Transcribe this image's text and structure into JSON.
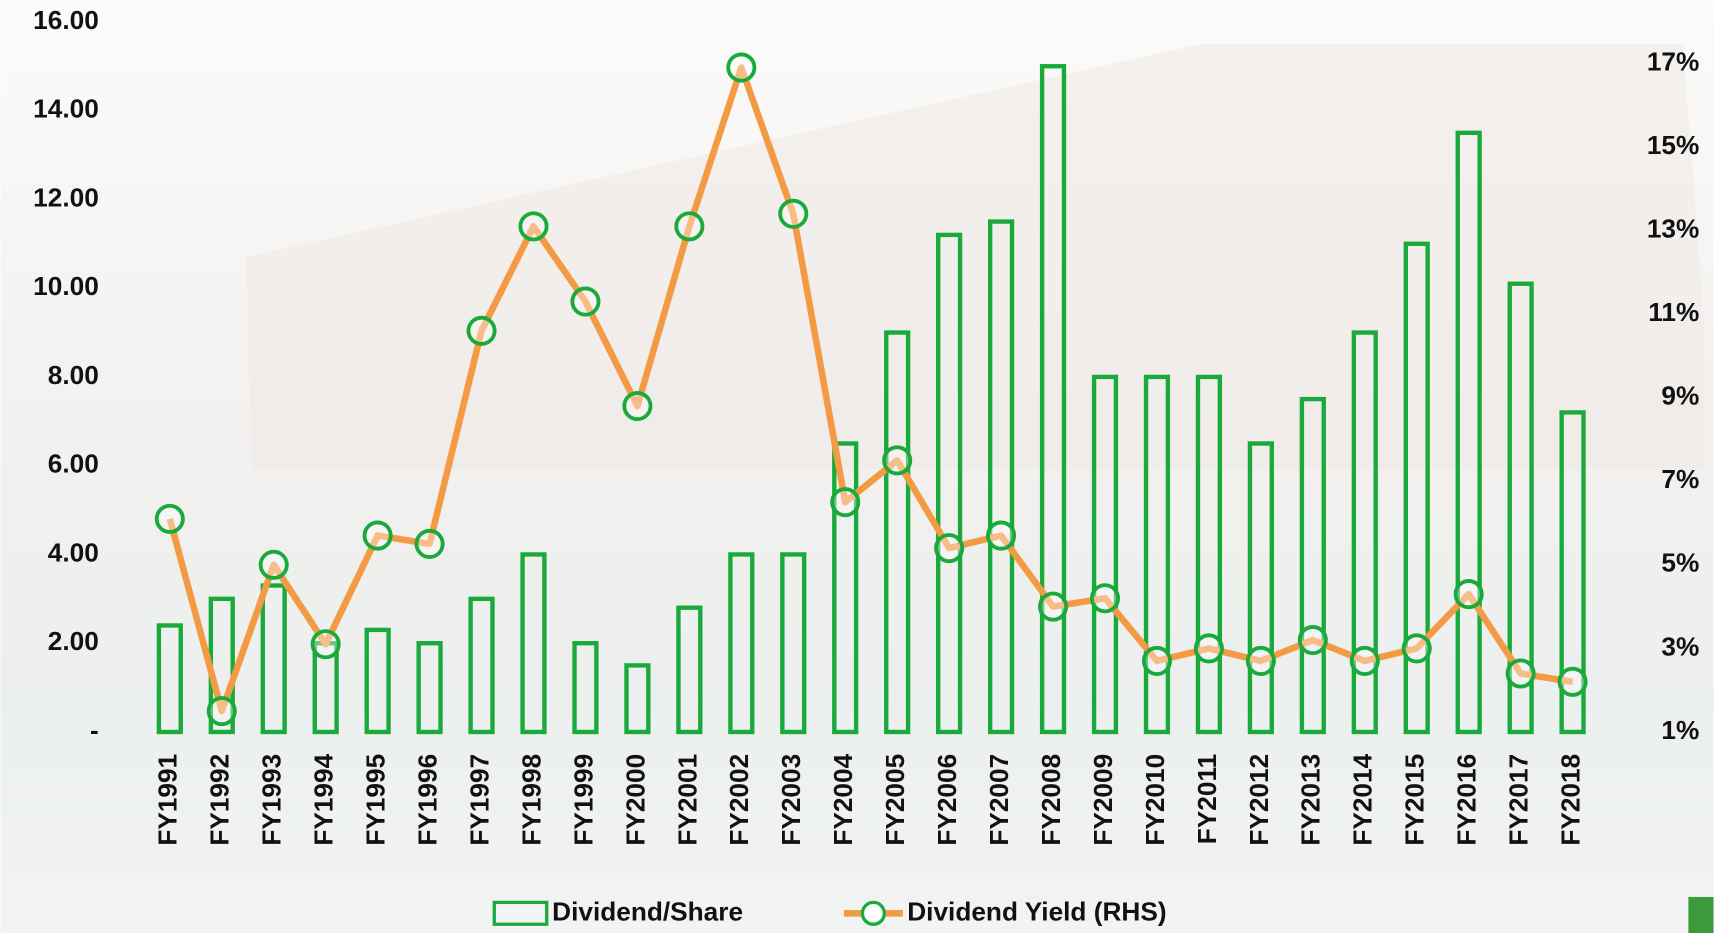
{
  "chart_data": {
    "type": "bar-line",
    "categories": [
      "FY1991",
      "FY1992",
      "FY1993",
      "FY1994",
      "FY1995",
      "FY1996",
      "FY1997",
      "FY1998",
      "FY1999",
      "FY2000",
      "FY2001",
      "FY2002",
      "FY2003",
      "FY2004",
      "FY2005",
      "FY2006",
      "FY2007",
      "FY2008",
      "FY2009",
      "FY2010",
      "FY2011",
      "FY2012",
      "FY2013",
      "FY2014",
      "FY2015",
      "FY2016",
      "FY2017",
      "FY2018"
    ],
    "series": [
      {
        "name": "Dividend/Share",
        "type": "bar",
        "color": "#1aaa3c",
        "values": [
          2.4,
          3.0,
          3.3,
          2.0,
          2.3,
          2.0,
          3.0,
          4.0,
          2.0,
          1.5,
          2.8,
          4.0,
          4.0,
          6.5,
          9.0,
          11.2,
          11.5,
          15.0,
          8.0,
          8.0,
          8.0,
          6.5,
          7.5,
          9.0,
          11.0,
          13.5,
          10.1,
          7.2
        ]
      },
      {
        "name": "Dividend Yield (RHS)",
        "type": "line",
        "axis": "y2",
        "color": "#f39a45",
        "marker_color": "#1aaa3c",
        "values": [
          6.1,
          1.5,
          5.0,
          3.1,
          5.7,
          5.5,
          10.6,
          13.1,
          11.3,
          8.8,
          13.1,
          16.9,
          13.4,
          6.5,
          7.5,
          5.4,
          5.7,
          4.0,
          4.2,
          2.7,
          3.0,
          2.7,
          3.2,
          2.7,
          3.0,
          4.3,
          2.4,
          2.2
        ]
      }
    ],
    "ylim": [
      0,
      16
    ],
    "yticks": [
      {
        "value": 0,
        "label": "-"
      },
      {
        "value": 2,
        "label": "2.00"
      },
      {
        "value": 4,
        "label": "4.00"
      },
      {
        "value": 6,
        "label": "6.00"
      },
      {
        "value": 8,
        "label": "8.00"
      },
      {
        "value": 10,
        "label": "10.00"
      },
      {
        "value": 12,
        "label": "12.00"
      },
      {
        "value": 14,
        "label": "14.00"
      },
      {
        "value": 16,
        "label": "16.00"
      }
    ],
    "y2lim": [
      1,
      17
    ],
    "y2ticks": [
      {
        "value": 1,
        "label": "1%"
      },
      {
        "value": 3,
        "label": "3%"
      },
      {
        "value": 5,
        "label": "5%"
      },
      {
        "value": 7,
        "label": "7%"
      },
      {
        "value": 9,
        "label": "9%"
      },
      {
        "value": 11,
        "label": "11%"
      },
      {
        "value": 13,
        "label": "13%"
      },
      {
        "value": 15,
        "label": "15%"
      },
      {
        "value": 17,
        "label": "17%"
      }
    ],
    "grid": false,
    "legend": "bottom"
  }
}
